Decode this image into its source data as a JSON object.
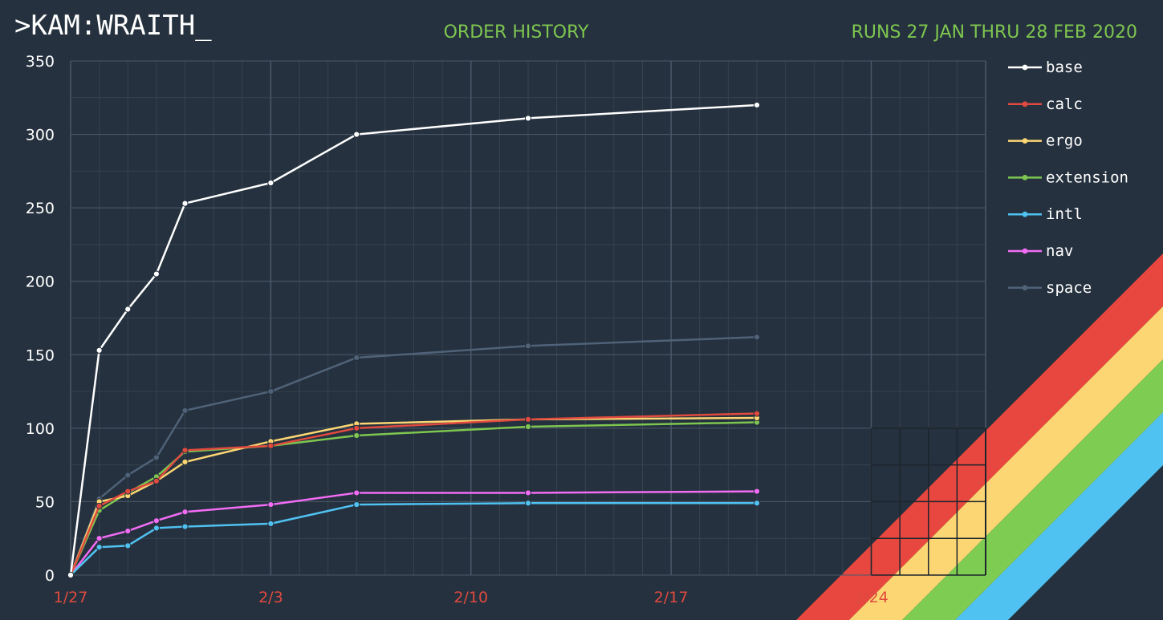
{
  "header": {
    "brand": ">KAM:WRAITH_",
    "title": "ORDER HISTORY",
    "range": "RUNS 27 JAN THRU 28 FEB 2020"
  },
  "colors": {
    "background": "#25313e",
    "grid": "#3a4856",
    "grid_major": "#4a5868",
    "title": "#7ec650",
    "x_tick": "#e04a3f",
    "rainbow": [
      "#e8473f",
      "#fcd673",
      "#7ecc52",
      "#50c2f2"
    ]
  },
  "chart_data": {
    "type": "line",
    "title": "ORDER HISTORY",
    "xlabel": "",
    "ylabel": "",
    "x_axis": "date",
    "xlim": [
      "2020-01-27",
      "2020-02-28"
    ],
    "ylim": [
      0,
      350
    ],
    "yticks": [
      0,
      50,
      100,
      150,
      200,
      250,
      300,
      350
    ],
    "xticks": [
      {
        "date": "2020-01-27",
        "label": "1/27"
      },
      {
        "date": "2020-02-03",
        "label": "2/3"
      },
      {
        "date": "2020-02-10",
        "label": "2/10"
      },
      {
        "date": "2020-02-17",
        "label": "2/17"
      },
      {
        "date": "2020-02-24",
        "label": "2/24"
      }
    ],
    "grid": true,
    "legend_position": "right",
    "x": [
      "2020-01-27",
      "2020-01-28",
      "2020-01-29",
      "2020-01-30",
      "2020-01-31",
      "2020-02-03",
      "2020-02-06",
      "2020-02-12",
      "2020-02-20"
    ],
    "series": [
      {
        "name": "base",
        "color": "#ffffff",
        "values": [
          0,
          153,
          181,
          205,
          253,
          267,
          300,
          311,
          320
        ]
      },
      {
        "name": "calc",
        "color": "#e04a3f",
        "values": [
          0,
          47,
          57,
          64,
          85,
          88,
          100,
          106,
          110
        ]
      },
      {
        "name": "ergo",
        "color": "#fcd673",
        "values": [
          0,
          50,
          54,
          64,
          77,
          91,
          103,
          106,
          107
        ]
      },
      {
        "name": "extension",
        "color": "#7ec650",
        "values": [
          0,
          44,
          56,
          67,
          84,
          88,
          95,
          101,
          104
        ]
      },
      {
        "name": "intl",
        "color": "#50c2f2",
        "values": [
          0,
          19,
          20,
          32,
          33,
          35,
          48,
          49,
          49
        ]
      },
      {
        "name": "nav",
        "color": "#f26cf5",
        "values": [
          0,
          25,
          30,
          37,
          43,
          48,
          56,
          56,
          57
        ]
      },
      {
        "name": "space",
        "color": "#4f6278",
        "values": [
          0,
          52,
          68,
          80,
          112,
          125,
          148,
          156,
          162
        ]
      }
    ]
  }
}
